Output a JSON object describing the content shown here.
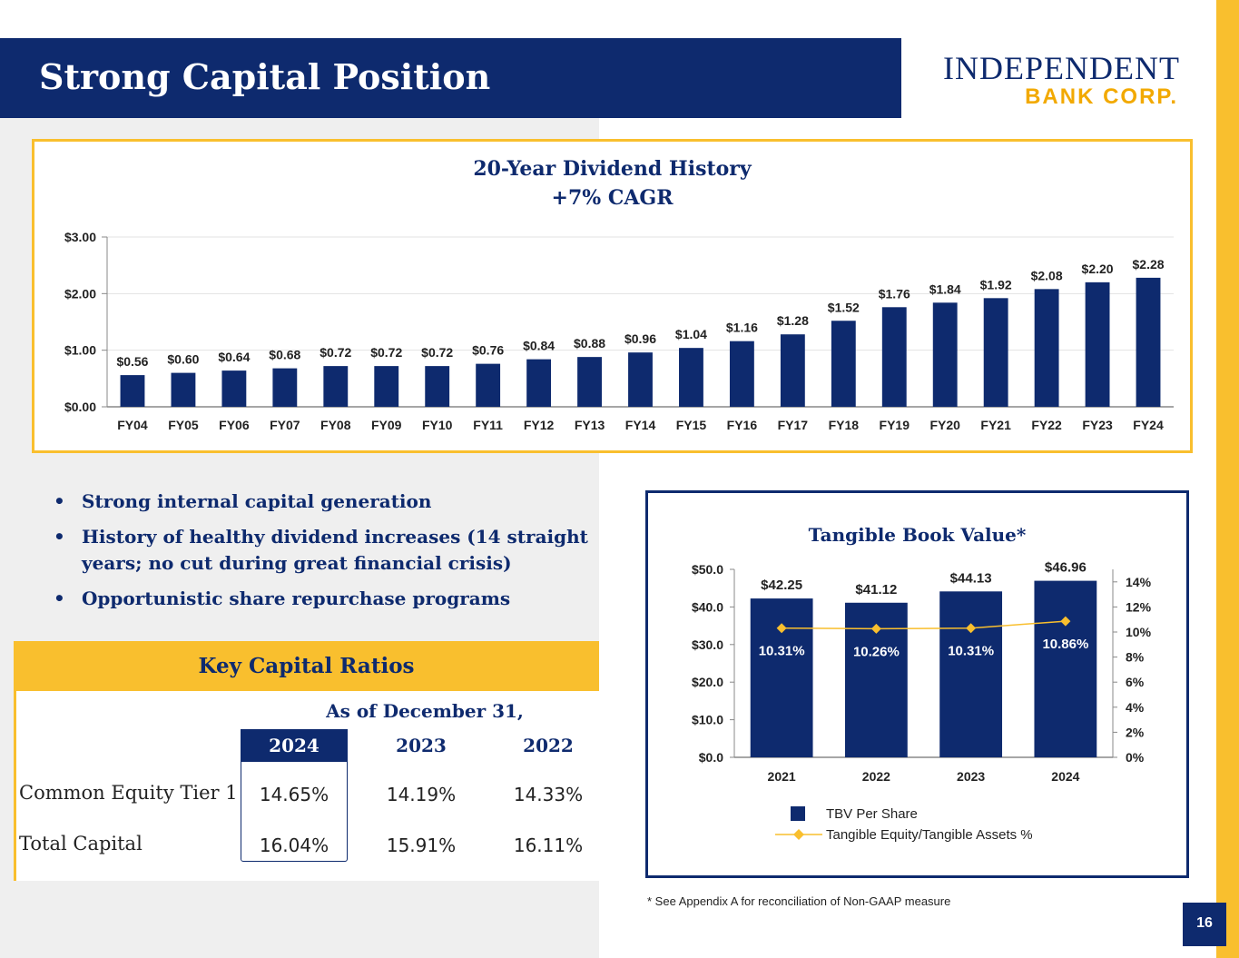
{
  "header": {
    "title": "Strong Capital Position",
    "logo_line1": "INDEPENDENT",
    "logo_line2": "BANK CORP."
  },
  "colors": {
    "navy": "#0e2a6e",
    "gold": "#f9bf2e",
    "gray": "#efefef"
  },
  "bullets": [
    "Strong internal capital generation",
    "History of healthy dividend increases (14 straight years; no cut during great financial crisis)",
    "Opportunistic share repurchase programs"
  ],
  "ratios": {
    "title": "Key Capital Ratios",
    "as_of": "As of December 31,",
    "years": [
      "2024",
      "2023",
      "2022"
    ],
    "rows": [
      {
        "label": "Common Equity Tier 1",
        "values": [
          "14.65%",
          "14.19%",
          "14.33%"
        ]
      },
      {
        "label": "Total Capital",
        "values": [
          "16.04%",
          "15.91%",
          "16.11%"
        ]
      }
    ]
  },
  "footnote": "* See Appendix A for reconciliation of Non-GAAP measure",
  "page_number": "16",
  "chart_data": [
    {
      "type": "bar",
      "title": "20-Year Dividend History",
      "subtitle": "+7% CAGR",
      "categories": [
        "FY04",
        "FY05",
        "FY06",
        "FY07",
        "FY08",
        "FY09",
        "FY10",
        "FY11",
        "FY12",
        "FY13",
        "FY14",
        "FY15",
        "FY16",
        "FY17",
        "FY18",
        "FY19",
        "FY20",
        "FY21",
        "FY22",
        "FY23",
        "FY24"
      ],
      "values": [
        0.56,
        0.6,
        0.64,
        0.68,
        0.72,
        0.72,
        0.72,
        0.76,
        0.84,
        0.88,
        0.96,
        1.04,
        1.16,
        1.28,
        1.52,
        1.76,
        1.84,
        1.92,
        2.08,
        2.2,
        2.28
      ],
      "labels": [
        "$0.56",
        "$0.60",
        "$0.64",
        "$0.68",
        "$0.72",
        "$0.72",
        "$0.72",
        "$0.76",
        "$0.84",
        "$0.88",
        "$0.96",
        "$1.04",
        "$1.16",
        "$1.28",
        "$1.52",
        "$1.76",
        "$1.84",
        "$1.92",
        "$2.08",
        "$2.20",
        "$2.28"
      ],
      "yticks": [
        "$0.00",
        "$1.00",
        "$2.00",
        "$3.00"
      ],
      "ylim": [
        0,
        3
      ],
      "grid": true,
      "bar_color": "#0e2a6e"
    },
    {
      "type": "bar",
      "title": "Tangible Book Value*",
      "categories": [
        "2021",
        "2022",
        "2023",
        "2024"
      ],
      "series": [
        {
          "name": "TBV Per Share",
          "type": "bar",
          "values": [
            42.25,
            41.12,
            44.13,
            46.96
          ],
          "labels": [
            "$42.25",
            "$41.12",
            "$44.13",
            "$46.96"
          ],
          "color": "#0e2a6e"
        },
        {
          "name": "Tangible Equity/Tangible Assets %",
          "type": "line",
          "axis": "right",
          "values": [
            10.31,
            10.26,
            10.31,
            10.86
          ],
          "labels": [
            "10.31%",
            "10.26%",
            "10.31%",
            "10.86%"
          ],
          "color": "#f9bf2e"
        }
      ],
      "y_left_ticks": [
        "$0.0",
        "$10.0",
        "$20.0",
        "$30.0",
        "$40.0",
        "$50.0"
      ],
      "ylim_left": [
        0,
        50
      ],
      "y_right_ticks": [
        "0%",
        "2%",
        "4%",
        "6%",
        "8%",
        "10%",
        "12%",
        "14%"
      ],
      "ylim_right": [
        0,
        15
      ],
      "legend": "bottom"
    }
  ]
}
